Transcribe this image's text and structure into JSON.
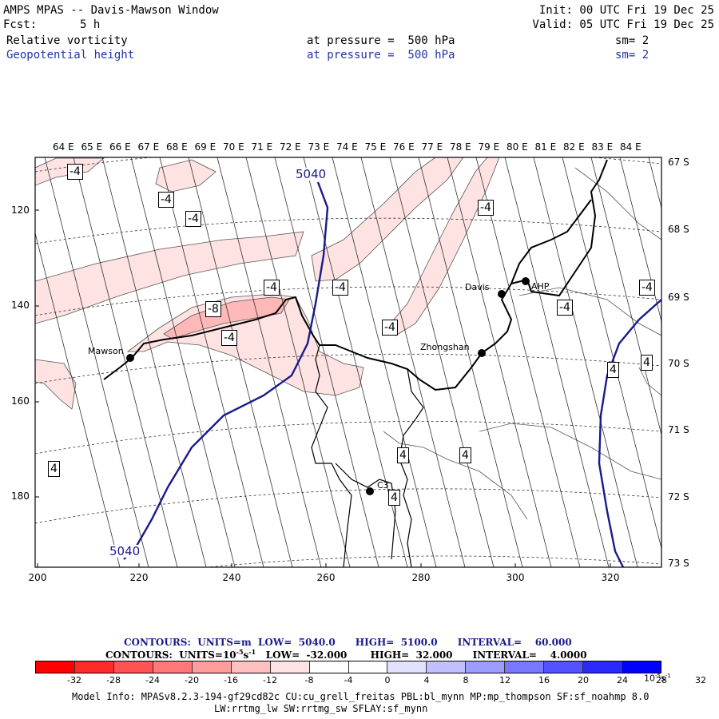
{
  "header": {
    "title": "AMPS MPAS -- Davis-Mawson Window",
    "fcst_label": "Fcst:",
    "fcst_value": "5 h",
    "init": "Init: 00 UTC Fri 19 Dec 25",
    "valid": "Valid: 05 UTC Fri 19 Dec 25",
    "field1": {
      "name": "Relative vorticity",
      "pressure": "at pressure =  500 hPa",
      "sm": "sm= 2"
    },
    "field2": {
      "name": "Geopotential height",
      "pressure": "at pressure =  500 hPa",
      "sm": "sm= 2"
    }
  },
  "map": {
    "lon_labels": [
      "64 E",
      "65 E",
      "66 E",
      "67 E",
      "68 E",
      "69 E",
      "70 E",
      "71 E",
      "72 E",
      "73 E",
      "74 E",
      "75 E",
      "76 E",
      "77 E",
      "78 E",
      "79 E",
      "80 E",
      "81 E",
      "82 E",
      "83 E",
      "84 E"
    ],
    "lat_labels": [
      "67 S",
      "68 S",
      "69 S",
      "70 S",
      "71 S",
      "72 S",
      "73 S"
    ],
    "y_ticks": [
      "120",
      "140",
      "160",
      "180"
    ],
    "x_ticks": [
      "200",
      "220",
      "240",
      "260",
      "280",
      "300",
      "320"
    ],
    "stations": [
      "Mawson",
      "Davis",
      "AHP",
      "Zhongshan",
      "C3"
    ],
    "height_labels": [
      "5040",
      "5040"
    ],
    "vort_labels": [
      "-4",
      "-4",
      "-4",
      "-4",
      "-4",
      "-4",
      "-8",
      "-4",
      "-4",
      "-4",
      "-4",
      "4",
      "4",
      "4",
      "4",
      "4",
      "4"
    ],
    "colors": {
      "height_contour": "#1a1a8c",
      "coast": "#000000",
      "station_label": "#000000"
    }
  },
  "contour_info": {
    "line1": "CONTOURS:  UNITS=m  LOW=  5040.0      HIGH=  5100.0      INTERVAL=    60.000",
    "line2_a": "CONTOURS:  UNITS=10",
    "line2_b": "s",
    "line2_c": "   LOW=  -32.000       HIGH=  32.000      INTERVAL=    4.0000",
    "exp_neg5": "-5",
    "exp_neg1": "-1"
  },
  "colorbar": {
    "colors": [
      "#ff0000",
      "#ff2a2a",
      "#ff5252",
      "#ff7878",
      "#ff9d9d",
      "#ffc0c0",
      "#ffe2e2",
      "#ffffff",
      "#ffffff",
      "#e2e2ff",
      "#c0c0ff",
      "#9d9dff",
      "#7878ff",
      "#5252ff",
      "#2a2aff",
      "#0000ff"
    ],
    "ticks": [
      "-32",
      "-28",
      "-24",
      "-20",
      "-16",
      "-12",
      "-8",
      "-4",
      "0",
      "4",
      "8",
      "12",
      "16",
      "20",
      "24",
      "28",
      "32"
    ],
    "units_a": "10",
    "units_exp": "-5",
    "units_b": "s",
    "units_exp2": "-1"
  },
  "footer": {
    "line1": "Model Info: MPASv8.2.3-194-gf29cd82c CU:cu_grell_freitas PBL:bl_mynn MP:mp_thompson SF:sf_noahmp 8.0",
    "line2": "LW:rrtmg_lw SW:rrtmg_sw SFLAY:sf_mynn"
  }
}
